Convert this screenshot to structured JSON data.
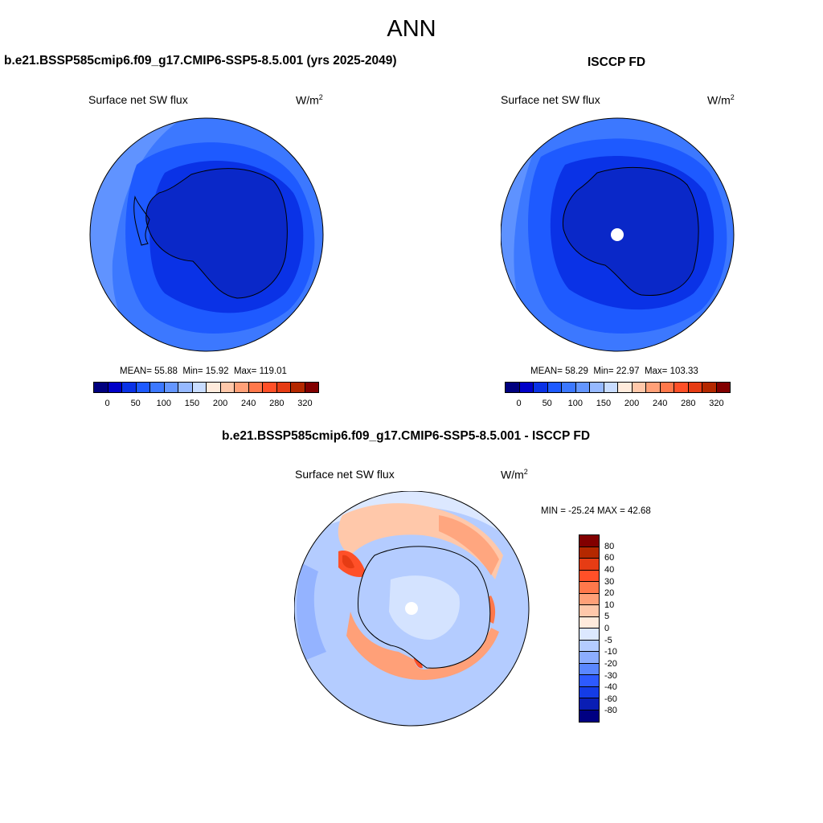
{
  "title": "ANN",
  "panels": {
    "model": {
      "title": "b.e21.BSSP585cmip6.f09_g17.CMIP6-SSP5-8.5.001 (yrs 2025-2049)",
      "variable": "Surface net SW flux",
      "units": "W/m",
      "units_sup": "2",
      "mean_label": "MEAN=",
      "mean": "55.88",
      "min_label": "Min=",
      "min": "15.92",
      "max_label": "Max=",
      "max": "119.01"
    },
    "obs": {
      "title": "ISCCP FD",
      "variable": "Surface net SW flux",
      "units": "W/m",
      "units_sup": "2",
      "mean_label": "MEAN=",
      "mean": "58.29",
      "min_label": "Min=",
      "min": "22.97",
      "max_label": "Max=",
      "max": "103.33"
    },
    "diff": {
      "title": "b.e21.BSSP585cmip6.f09_g17.CMIP6-SSP5-8.5.001 - ISCCP FD",
      "variable": "Surface net SW flux",
      "units": "W/m",
      "units_sup": "2",
      "minmax": "MIN = -25.24 MAX =  42.68"
    }
  },
  "colorbar_abs": {
    "colors": [
      "#00007f",
      "#0000c8",
      "#0a32e6",
      "#1e5aff",
      "#3c78ff",
      "#6496ff",
      "#96b9ff",
      "#c8dcff",
      "#ffebdc",
      "#ffc8aa",
      "#ffa078",
      "#ff784b",
      "#ff5028",
      "#e63c14",
      "#b42800",
      "#820000"
    ],
    "labels": [
      "0",
      "50",
      "100",
      "150",
      "200",
      "240",
      "280",
      "320"
    ]
  },
  "colorbar_diff": {
    "colors": [
      "#820000",
      "#b42800",
      "#e63c14",
      "#ff5028",
      "#ff784b",
      "#ffa078",
      "#ffc8aa",
      "#ffebdc",
      "#dce8ff",
      "#b4ccff",
      "#8cadff",
      "#5a87ff",
      "#2d5aff",
      "#143ce6",
      "#0a1eb4",
      "#000082"
    ],
    "labels": [
      "80",
      "60",
      "40",
      "30",
      "20",
      "10",
      "5",
      "0",
      "-5",
      "-10",
      "-20",
      "-30",
      "-40",
      "-60",
      "-80"
    ]
  }
}
